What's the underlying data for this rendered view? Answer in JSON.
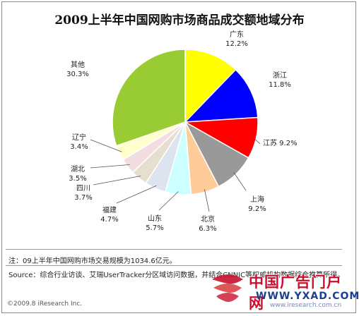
{
  "chart_data": {
    "type": "pie",
    "title": "2009上半年中国网购市场商品成交额地域分布",
    "slices": [
      {
        "label": "广东",
        "value": 12.2,
        "value_text": "12.2%",
        "color": "#ffff00"
      },
      {
        "label": "浙江",
        "value": 11.8,
        "value_text": "11.8%",
        "color": "#0000ff"
      },
      {
        "label": "江苏",
        "value": 9.2,
        "value_text": "9.2%",
        "color": "#ff0000"
      },
      {
        "label": "上海",
        "value": 9.2,
        "value_text": "9.2%",
        "color": "#999999"
      },
      {
        "label": "北京",
        "value": 6.3,
        "value_text": "6.3%",
        "color": "#ffcc99"
      },
      {
        "label": "山东",
        "value": 5.7,
        "value_text": "5.7%",
        "color": "#ccffff"
      },
      {
        "label": "福建",
        "value": 4.7,
        "value_text": "4.7%",
        "color": "#dde4f0"
      },
      {
        "label": "四川",
        "value": 3.7,
        "value_text": "3.7%",
        "color": "#e6dfcf"
      },
      {
        "label": "湖北",
        "value": 3.5,
        "value_text": "3.5%",
        "color": "#f4dde1"
      },
      {
        "label": "辽宁",
        "value": 3.4,
        "value_text": "3.4%",
        "color": "#ffffcc"
      },
      {
        "label": "其他",
        "value": 30.3,
        "value_text": "30.3%",
        "color": "#99cc33"
      }
    ]
  },
  "footer": {
    "note": "注：09上半年中国网购市场交易规模为1034.6亿元。",
    "source": "Source：综合行业访谈、艾瑞UserTracker分区域访问数据，并结合CNNIC等权威机构数据综合推算所得。",
    "copyright": "©2009.8 iResearch Inc.",
    "site_url": "www.iresearch.com.cn"
  },
  "watermark": {
    "text": "中国广告门户网",
    "url": "WWW.YXAD.COM"
  }
}
